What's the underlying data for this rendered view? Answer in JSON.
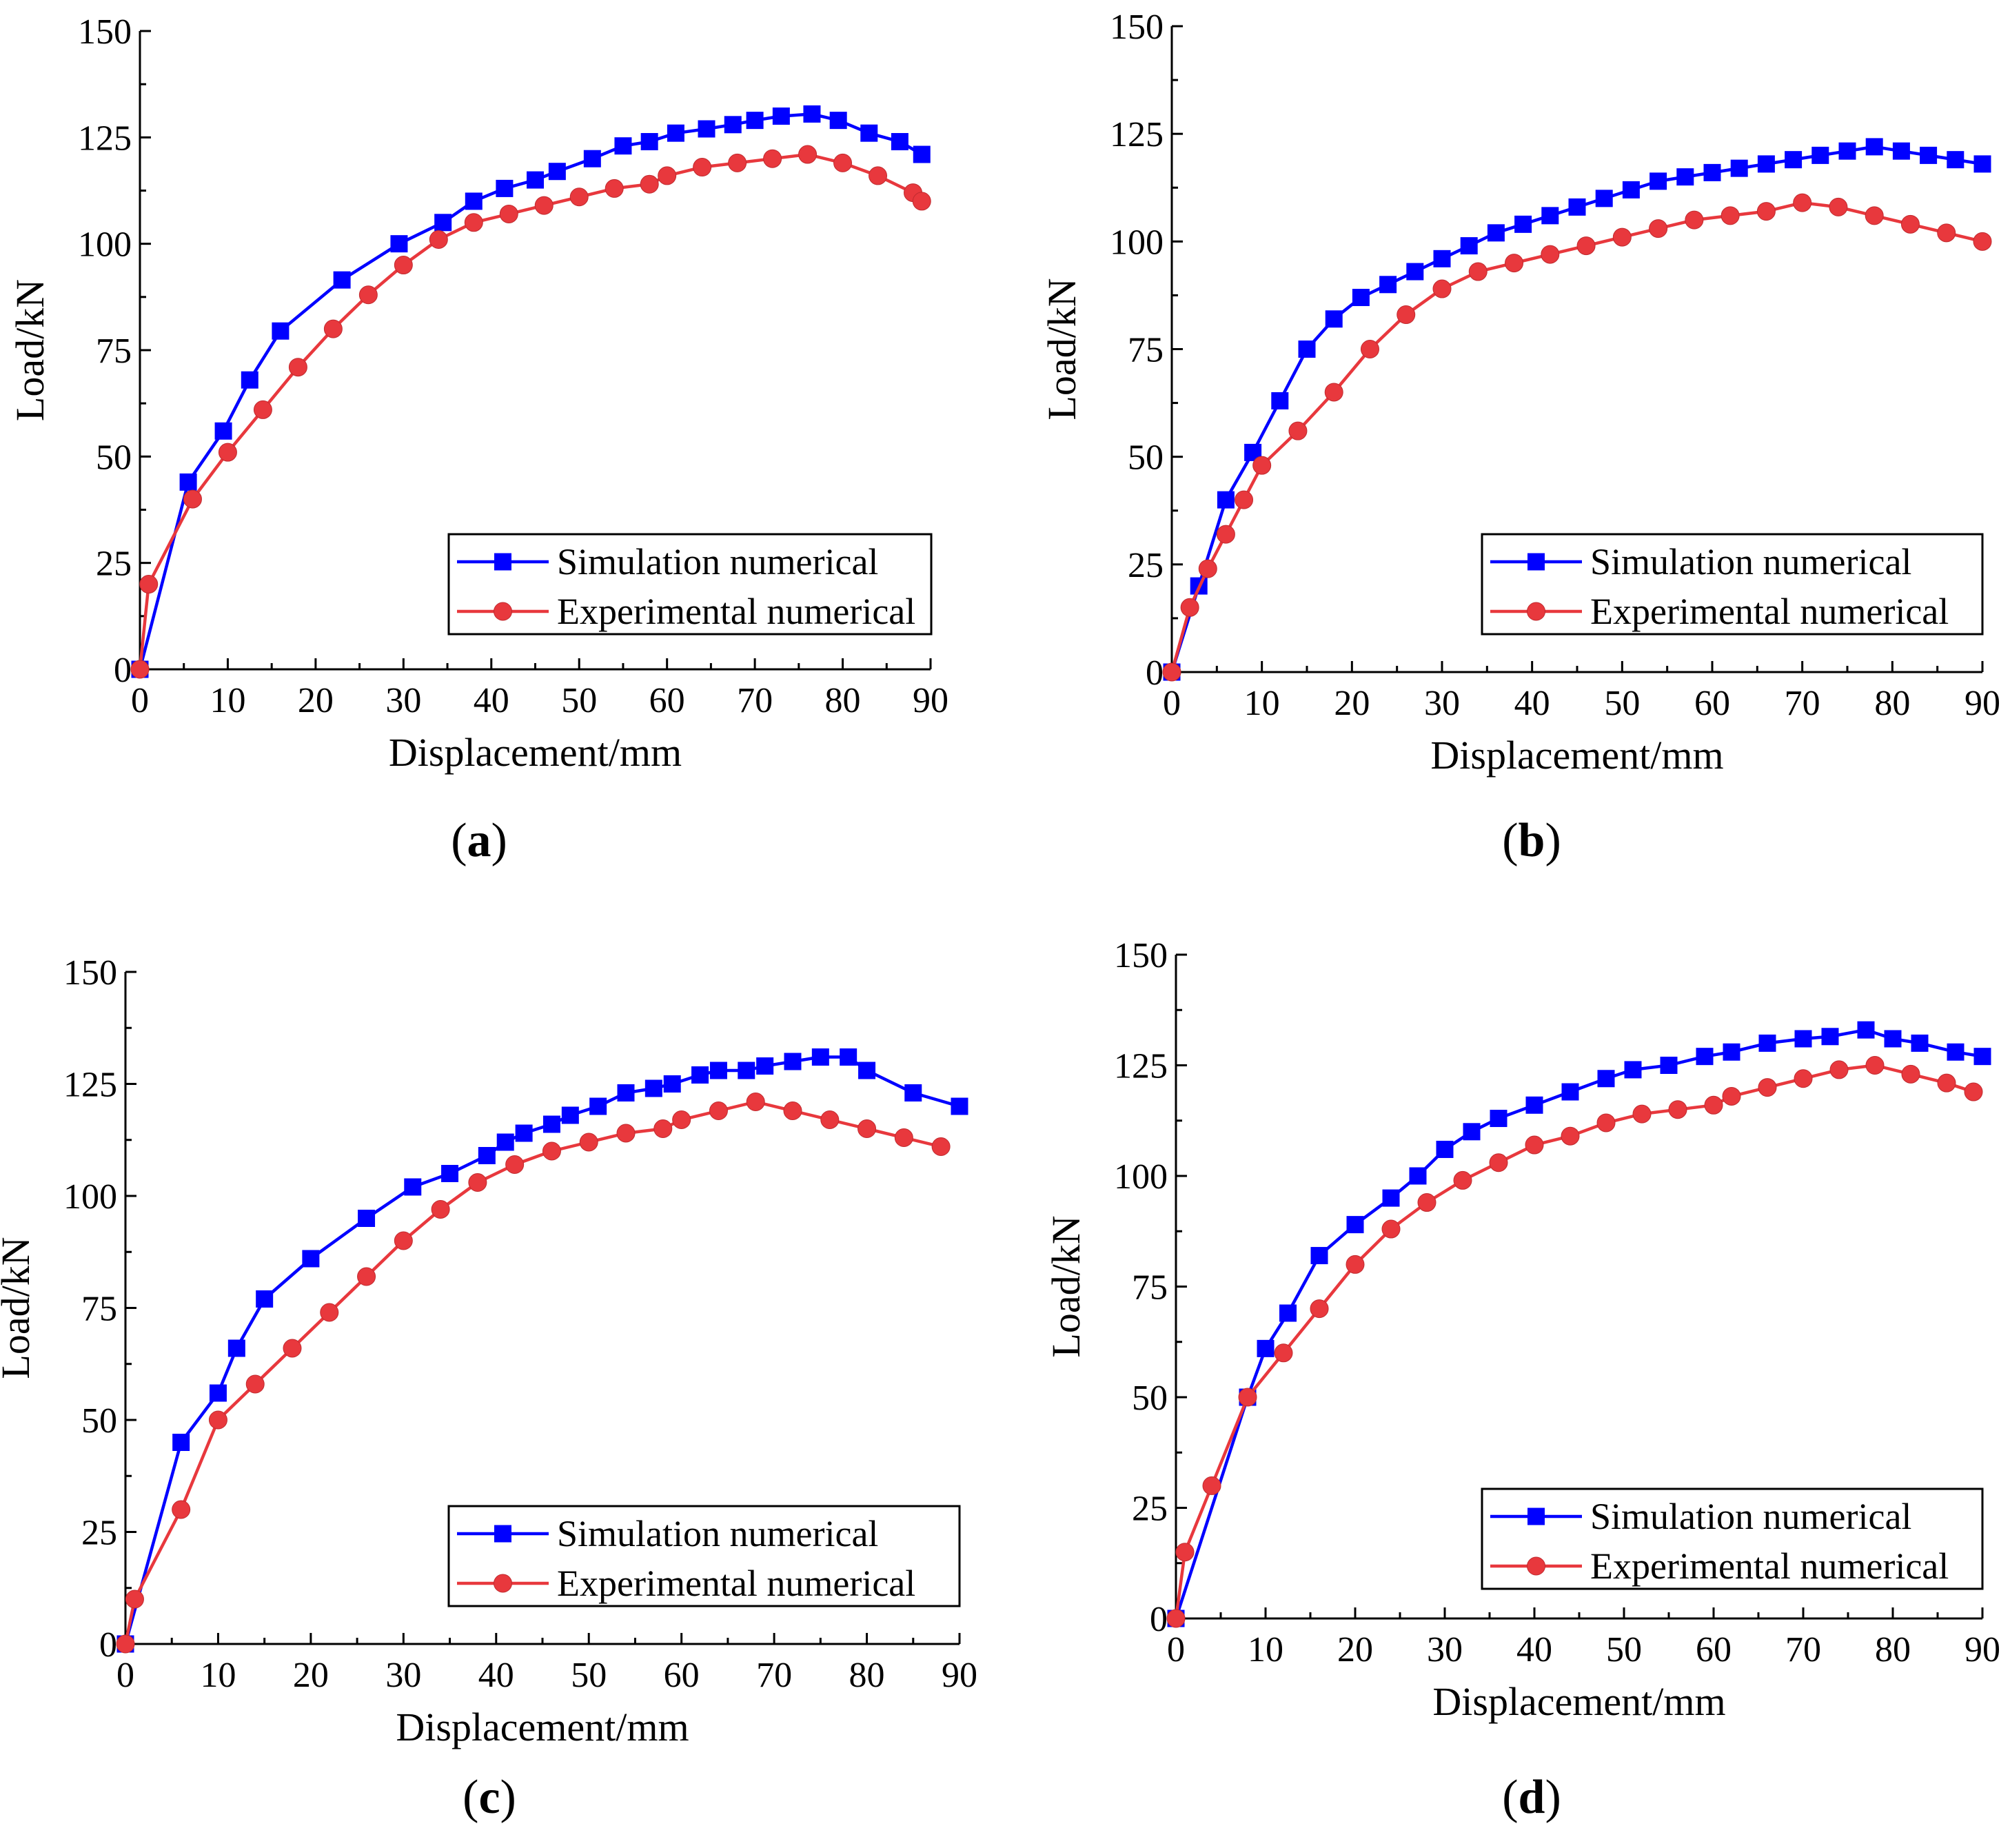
{
  "chart_data": [
    {
      "type": "line",
      "panel": "a",
      "xlabel": "Displacement/mm",
      "ylabel": "Load/kN",
      "xlim": [
        0,
        90
      ],
      "ylim": [
        0,
        150
      ],
      "xticks": [
        0,
        10,
        20,
        30,
        40,
        50,
        60,
        70,
        80,
        90
      ],
      "yticks": [
        0,
        25,
        50,
        75,
        100,
        125,
        150
      ],
      "legend_position": "bottom-right",
      "series": [
        {
          "name": "Simulation numerical",
          "color": "#0000ff",
          "marker": "square",
          "x": [
            0,
            5.5,
            9.5,
            12.5,
            16,
            23,
            29.5,
            34.5,
            38,
            41.5,
            45,
            47.5,
            51.5,
            55,
            58,
            61,
            64.5,
            67.5,
            70,
            73,
            76.5,
            79.5,
            83,
            86.5,
            89
          ],
          "y": [
            0,
            44,
            56,
            68,
            79.5,
            91.5,
            100,
            105,
            110,
            113,
            115,
            117,
            120,
            123,
            124,
            126,
            127,
            128,
            129,
            130,
            130.5,
            129,
            126,
            124,
            121
          ]
        },
        {
          "name": "Experimental numerical",
          "color": "#e8383d",
          "marker": "circle",
          "x": [
            0,
            1,
            6,
            10,
            14,
            18,
            22,
            26,
            30,
            34,
            38,
            42,
            46,
            50,
            54,
            58,
            60,
            64,
            68,
            72,
            76,
            80,
            84,
            88,
            89
          ],
          "y": [
            0,
            20,
            40,
            51,
            61,
            71,
            80,
            88,
            95,
            101,
            105,
            107,
            109,
            111,
            113,
            114,
            116,
            118,
            119,
            120,
            121,
            119,
            116,
            112,
            110
          ]
        }
      ]
    },
    {
      "type": "line",
      "panel": "b",
      "xlabel": "Displacement/mm",
      "ylabel": "Load/kN",
      "xlim": [
        0,
        90
      ],
      "ylim": [
        0,
        150
      ],
      "xticks": [
        0,
        10,
        20,
        30,
        40,
        50,
        60,
        70,
        80,
        90
      ],
      "yticks": [
        0,
        25,
        50,
        75,
        100,
        125,
        150
      ],
      "legend_position": "bottom-right",
      "series": [
        {
          "name": "Simulation numerical",
          "color": "#0000ff",
          "marker": "square",
          "x": [
            0,
            3,
            6,
            9,
            12,
            15,
            18,
            21,
            24,
            27,
            30,
            33,
            36,
            39,
            42,
            45,
            48,
            51,
            54,
            57,
            60,
            63,
            66,
            69,
            72,
            75,
            78,
            81,
            84,
            87,
            90
          ],
          "y": [
            0,
            20,
            40,
            51,
            63,
            75,
            82,
            87,
            90,
            93,
            96,
            99,
            102,
            104,
            106,
            108,
            110,
            112,
            114,
            115,
            116,
            117,
            118,
            119,
            120,
            121,
            122,
            121,
            120,
            119,
            118
          ]
        },
        {
          "name": "Experimental numerical",
          "color": "#e8383d",
          "marker": "circle",
          "x": [
            0,
            2,
            4,
            6,
            8,
            10,
            14,
            18,
            22,
            26,
            30,
            34,
            38,
            42,
            46,
            50,
            54,
            58,
            62,
            66,
            70,
            74,
            78,
            82,
            86,
            90
          ],
          "y": [
            0,
            15,
            24,
            32,
            40,
            48,
            56,
            65,
            75,
            83,
            89,
            93,
            95,
            97,
            99,
            101,
            103,
            105,
            106,
            107,
            109,
            108,
            106,
            104,
            102,
            100
          ]
        }
      ]
    },
    {
      "type": "line",
      "panel": "c",
      "xlabel": "Displacement/mm",
      "ylabel": "Load/kN",
      "xlim": [
        0,
        90
      ],
      "ylim": [
        0,
        150
      ],
      "xticks": [
        0,
        10,
        20,
        30,
        40,
        50,
        60,
        70,
        80,
        90
      ],
      "yticks": [
        0,
        25,
        50,
        75,
        100,
        125,
        150
      ],
      "legend_position": "bottom-right",
      "series": [
        {
          "name": "Simulation numerical",
          "color": "#0000ff",
          "marker": "square",
          "x": [
            0,
            6,
            10,
            12,
            15,
            20,
            26,
            31,
            35,
            39,
            41,
            43,
            46,
            48,
            51,
            54,
            57,
            59,
            62,
            64,
            67,
            69,
            72,
            75,
            78,
            80,
            85,
            90
          ],
          "y": [
            0,
            45,
            56,
            66,
            77,
            86,
            95,
            102,
            105,
            109,
            112,
            114,
            116,
            118,
            120,
            123,
            124,
            125,
            127,
            128,
            128,
            129,
            130,
            131,
            131,
            128,
            123,
            120
          ]
        },
        {
          "name": "Experimental numerical",
          "color": "#e8383d",
          "marker": "circle",
          "x": [
            0,
            1,
            6,
            10,
            14,
            18,
            22,
            26,
            30,
            34,
            38,
            42,
            46,
            50,
            54,
            58,
            60,
            64,
            68,
            72,
            76,
            80,
            84,
            88
          ],
          "y": [
            0,
            10,
            30,
            50,
            58,
            66,
            74,
            82,
            90,
            97,
            103,
            107,
            110,
            112,
            114,
            115,
            117,
            119,
            121,
            119,
            117,
            115,
            113,
            111
          ]
        }
      ]
    },
    {
      "type": "line",
      "panel": "d",
      "xlabel": "Displacement/mm",
      "ylabel": "Load/kN",
      "xlim": [
        0,
        90
      ],
      "ylim": [
        0,
        150
      ],
      "xticks": [
        0,
        10,
        20,
        30,
        40,
        50,
        60,
        70,
        80,
        90
      ],
      "yticks": [
        0,
        25,
        50,
        75,
        100,
        125,
        150
      ],
      "legend_position": "bottom-right",
      "series": [
        {
          "name": "Simulation numerical",
          "color": "#0000ff",
          "marker": "square",
          "x": [
            0,
            8,
            10,
            12.5,
            16,
            20,
            24,
            27,
            30,
            33,
            36,
            40,
            44,
            48,
            51,
            55,
            59,
            62,
            66,
            70,
            73,
            77,
            80,
            83,
            87,
            90
          ],
          "y": [
            0,
            50,
            61,
            69,
            82,
            89,
            95,
            100,
            106,
            110,
            113,
            116,
            119,
            122,
            124,
            125,
            127,
            128,
            130,
            131,
            131.5,
            133,
            131,
            130,
            128,
            127
          ]
        },
        {
          "name": "Experimental numerical",
          "color": "#e8383d",
          "marker": "circle",
          "x": [
            0,
            1,
            4,
            8,
            12,
            16,
            20,
            24,
            28,
            32,
            36,
            40,
            44,
            48,
            52,
            56,
            60,
            62,
            66,
            70,
            74,
            78,
            82,
            86,
            89
          ],
          "y": [
            0,
            15,
            30,
            50,
            60,
            70,
            80,
            88,
            94,
            99,
            103,
            107,
            109,
            112,
            114,
            115,
            116,
            118,
            120,
            122,
            124,
            125,
            123,
            121,
            119
          ]
        }
      ]
    }
  ],
  "panel_labels": [
    "a",
    "b",
    "c",
    "d"
  ]
}
